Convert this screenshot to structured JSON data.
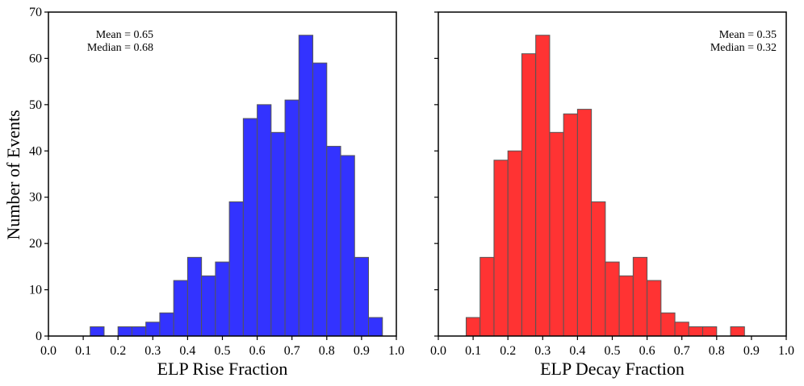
{
  "figure": {
    "ylabel": "Number of Events"
  },
  "chart_data": [
    {
      "type": "bar",
      "title": "",
      "xlabel": "ELP Rise Fraction",
      "ylabel": "Number of Events",
      "color": "#3333ff",
      "xlim": [
        0.0,
        1.0
      ],
      "ylim": [
        0,
        70
      ],
      "xticks": [
        "0.0",
        "0.1",
        "0.2",
        "0.3",
        "0.4",
        "0.5",
        "0.6",
        "0.7",
        "0.8",
        "0.9",
        "1.0"
      ],
      "yticks": [
        "0",
        "10",
        "20",
        "30",
        "40",
        "50",
        "60",
        "70"
      ],
      "bin_start": 0.12,
      "bin_width": 0.04,
      "values": [
        2,
        0,
        2,
        2,
        3,
        5,
        12,
        17,
        13,
        16,
        29,
        47,
        50,
        44,
        51,
        65,
        59,
        41,
        39,
        17,
        4
      ],
      "annotation": {
        "mean": "Mean = 0.65",
        "median": "Median = 0.68",
        "position": "top-left"
      }
    },
    {
      "type": "bar",
      "title": "",
      "xlabel": "ELP Decay Fraction",
      "ylabel": "",
      "color": "#ff3333",
      "xlim": [
        0.0,
        1.0
      ],
      "ylim": [
        0,
        70
      ],
      "xticks": [
        "0.0",
        "0.1",
        "0.2",
        "0.3",
        "0.4",
        "0.5",
        "0.6",
        "0.7",
        "0.8",
        "0.9",
        "1.0"
      ],
      "yticks": [],
      "bin_start": 0.08,
      "bin_width": 0.04,
      "values": [
        4,
        17,
        38,
        40,
        61,
        65,
        44,
        48,
        49,
        29,
        16,
        13,
        17,
        12,
        5,
        3,
        2,
        2,
        0,
        2
      ],
      "annotation": {
        "mean": "Mean = 0.35",
        "median": "Median = 0.32",
        "position": "top-right"
      }
    }
  ]
}
